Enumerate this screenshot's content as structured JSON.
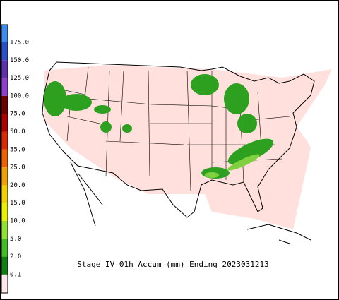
{
  "title": "Stage IV 01h Accum (mm) Ending 2023031213",
  "legend": {
    "labels": [
      "175.0",
      "150.0",
      "125.0",
      "100.0",
      "75.0",
      "50.0",
      "35.0",
      "25.0",
      "20.0",
      "15.0",
      "10.0",
      "5.0",
      "2.0",
      "0.1"
    ],
    "colors": [
      "#3c8cf0",
      "#2850c8",
      "#6030b0",
      "#9040d0",
      "#700000",
      "#b00000",
      "#e02800",
      "#f06000",
      "#f0a000",
      "#f0d000",
      "#e8f000",
      "#90e030",
      "#40c020",
      "#108010",
      "#ffe8e8"
    ]
  }
}
